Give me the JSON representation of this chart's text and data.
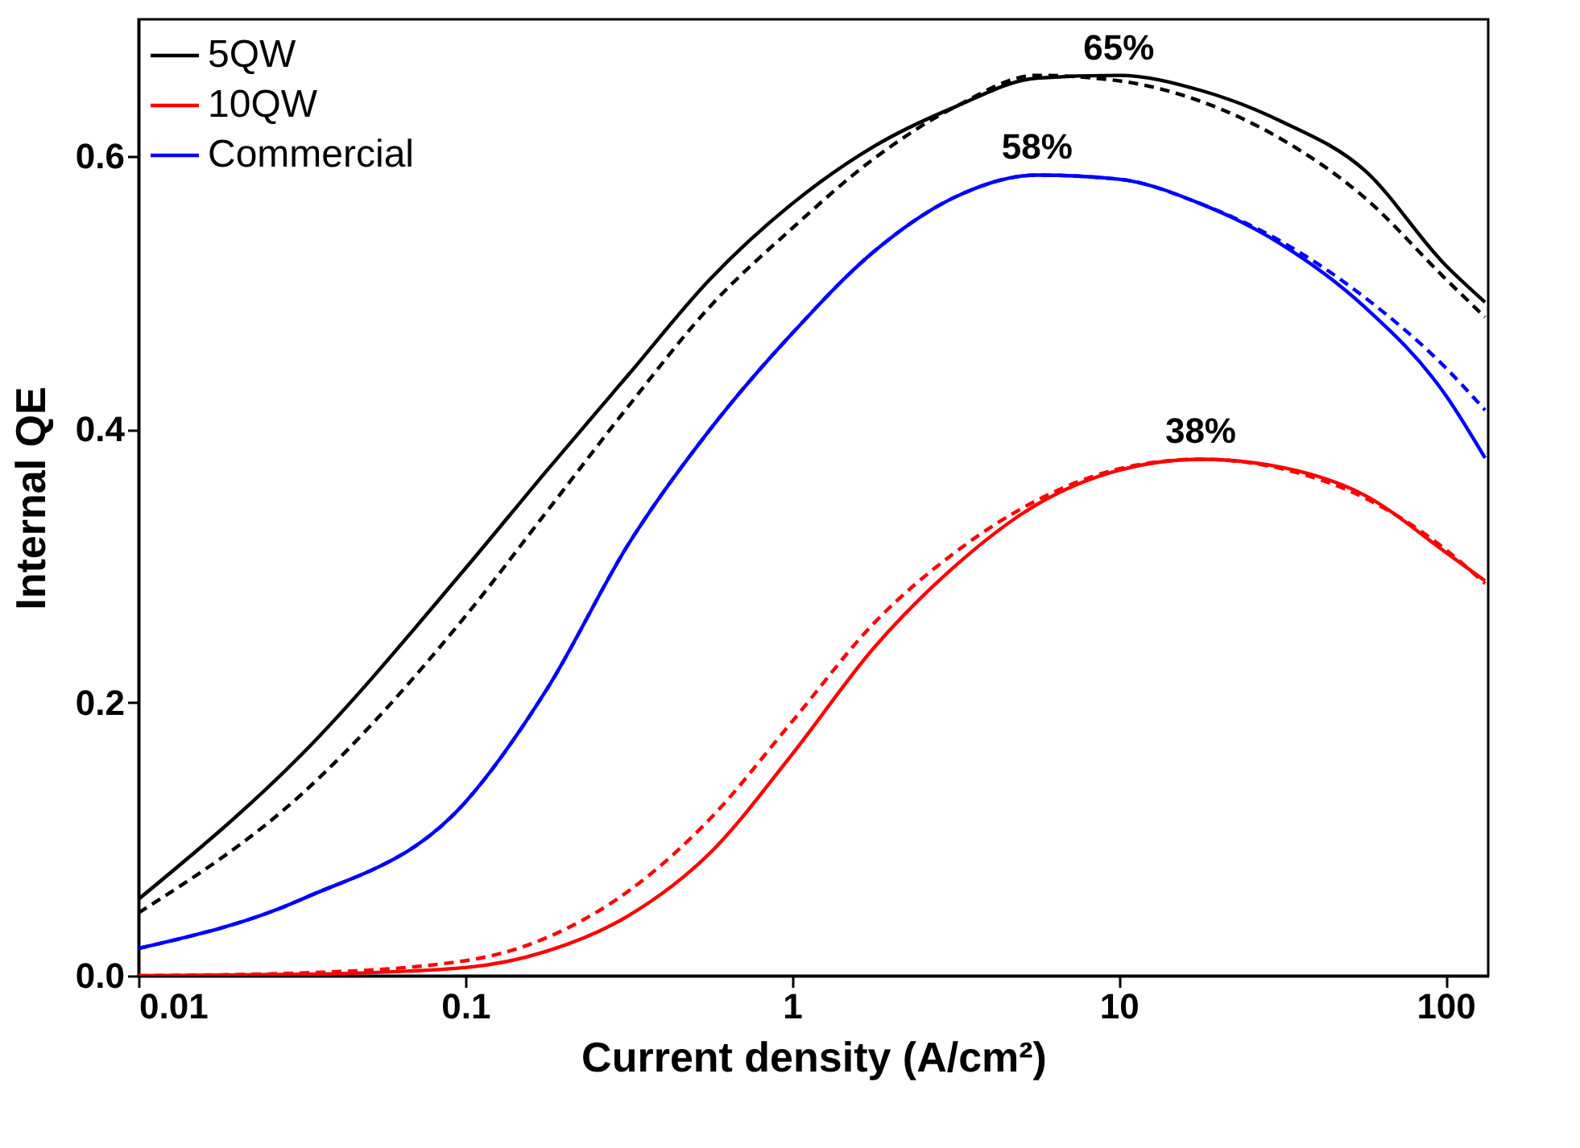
{
  "chart_data": {
    "type": "line",
    "xlabel": "Current density (A/cm²)",
    "ylabel": "Internal QE",
    "log": "x",
    "xlim": [
      0.01,
      135
    ],
    "ylim": [
      0,
      0.7
    ],
    "xticks": [
      0.01,
      0.1,
      1,
      10,
      100
    ],
    "yticks": [
      {
        "value": 0,
        "label": "0.0"
      },
      0.2,
      0.4,
      0.6
    ],
    "legend": "top left",
    "grid": false,
    "line_style": "solid",
    "x": [
      0.01,
      0.0316,
      0.1,
      0.178,
      0.316,
      0.562,
      1,
      1.78,
      3.16,
      5.62,
      10,
      17.8,
      31.6,
      56.2,
      100,
      132
    ],
    "series": [
      {
        "name": "5QW",
        "color": "#000000",
        "values": [
          0.056,
          0.162,
          0.298,
          0.37,
          0.44,
          0.51,
          0.565,
          0.607,
          0.636,
          0.657,
          0.659,
          0.648,
          0.625,
          0.59,
          0.52,
          0.493
        ]
      },
      {
        "name": "10QW",
        "color": "#ff0000",
        "values": [
          0,
          0.001,
          0.006,
          0.018,
          0.044,
          0.09,
          0.162,
          0.24,
          0.3,
          0.345,
          0.37,
          0.378,
          0.372,
          0.352,
          0.31,
          0.289
        ]
      },
      {
        "name": "Commercial",
        "color": "#0000ff",
        "values": [
          0.02,
          0.056,
          0.127,
          0.21,
          0.316,
          0.4,
          0.47,
          0.53,
          0.57,
          0.586,
          0.583,
          0.565,
          0.535,
          0.49,
          0.425,
          0.379
        ]
      },
      {
        "color": "#000000",
        "line_style": "dashed",
        "values": [
          0.046,
          0.133,
          0.263,
          0.34,
          0.417,
          0.49,
          0.547,
          0.598,
          0.636,
          0.659,
          0.655,
          0.64,
          0.612,
          0.57,
          0.51,
          0.482
        ]
      },
      {
        "color": "#ff0000",
        "line_style": "dashed",
        "values": [
          0,
          0.002,
          0.011,
          0.028,
          0.062,
          0.115,
          0.186,
          0.258,
          0.31,
          0.348,
          0.371,
          0.378,
          0.371,
          0.35,
          0.312,
          0.287
        ]
      },
      {
        "color": "#0000ff",
        "line_style": "dashed",
        "values": [
          0.02,
          0.056,
          0.127,
          0.21,
          0.316,
          0.4,
          0.47,
          0.53,
          0.57,
          0.586,
          0.583,
          0.565,
          0.537,
          0.497,
          0.445,
          0.414
        ]
      }
    ],
    "annotations": [
      {
        "text": "65%",
        "x": 10,
        "y": 0.659
      },
      {
        "text": "58%",
        "x": 5.62,
        "y": 0.586
      },
      {
        "text": "38%",
        "x": 17.8,
        "y": 0.378
      }
    ]
  }
}
